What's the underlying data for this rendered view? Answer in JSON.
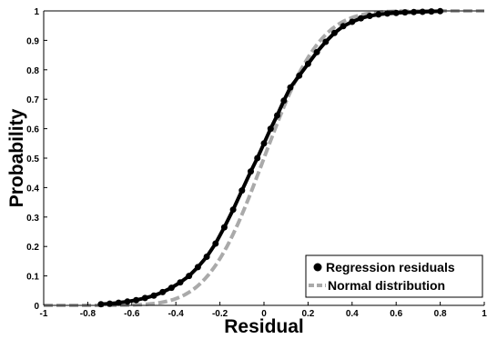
{
  "chart_data": {
    "type": "line",
    "title": "",
    "xlabel": "Residual",
    "ylabel": "Probability",
    "xlim": [
      -1,
      1
    ],
    "ylim": [
      0,
      1
    ],
    "grid": false,
    "legend_position": "bottom-right",
    "x_ticks": [
      "-1",
      "-0.8",
      "-0.6",
      "-0.4",
      "-0.2",
      "0",
      "0.2",
      "0.4",
      "0.6",
      "0.8",
      "1"
    ],
    "x_tick_values": [
      -1,
      -0.8,
      -0.6,
      -0.4,
      -0.2,
      0,
      0.2,
      0.4,
      0.6,
      0.8,
      1
    ],
    "y_ticks": [
      "0",
      "0.1",
      "0.2",
      "0.3",
      "0.4",
      "0.5",
      "0.6",
      "0.7",
      "0.8",
      "0.9",
      "1"
    ],
    "y_tick_values": [
      0,
      0.1,
      0.2,
      0.3,
      0.4,
      0.5,
      0.6,
      0.7,
      0.8,
      0.9,
      1
    ],
    "series": [
      {
        "name": "Regression residuals",
        "style": "markers",
        "color": "#000000",
        "x": [
          -0.74,
          -0.7,
          -0.66,
          -0.62,
          -0.58,
          -0.54,
          -0.5,
          -0.46,
          -0.42,
          -0.38,
          -0.34,
          -0.3,
          -0.26,
          -0.22,
          -0.18,
          -0.14,
          -0.1,
          -0.06,
          -0.03,
          0.0,
          0.03,
          0.06,
          0.09,
          0.12,
          0.16,
          0.2,
          0.24,
          0.28,
          0.32,
          0.36,
          0.4,
          0.44,
          0.48,
          0.52,
          0.56,
          0.6,
          0.64,
          0.68,
          0.72,
          0.76,
          0.8
        ],
        "y": [
          0.004,
          0.006,
          0.009,
          0.013,
          0.018,
          0.025,
          0.033,
          0.045,
          0.06,
          0.078,
          0.1,
          0.13,
          0.165,
          0.21,
          0.265,
          0.325,
          0.39,
          0.455,
          0.5,
          0.55,
          0.6,
          0.645,
          0.695,
          0.74,
          0.78,
          0.82,
          0.86,
          0.895,
          0.925,
          0.948,
          0.963,
          0.975,
          0.983,
          0.988,
          0.991,
          0.993,
          0.995,
          0.996,
          0.997,
          0.998,
          0.999
        ]
      },
      {
        "name": "Normal distribution",
        "style": "dashed-line",
        "color": "#aaaaaa",
        "mean": 0.0,
        "std": 0.2
      }
    ]
  },
  "legend": {
    "items": [
      {
        "label": "Regression residuals"
      },
      {
        "label": "Normal distribution"
      }
    ]
  }
}
